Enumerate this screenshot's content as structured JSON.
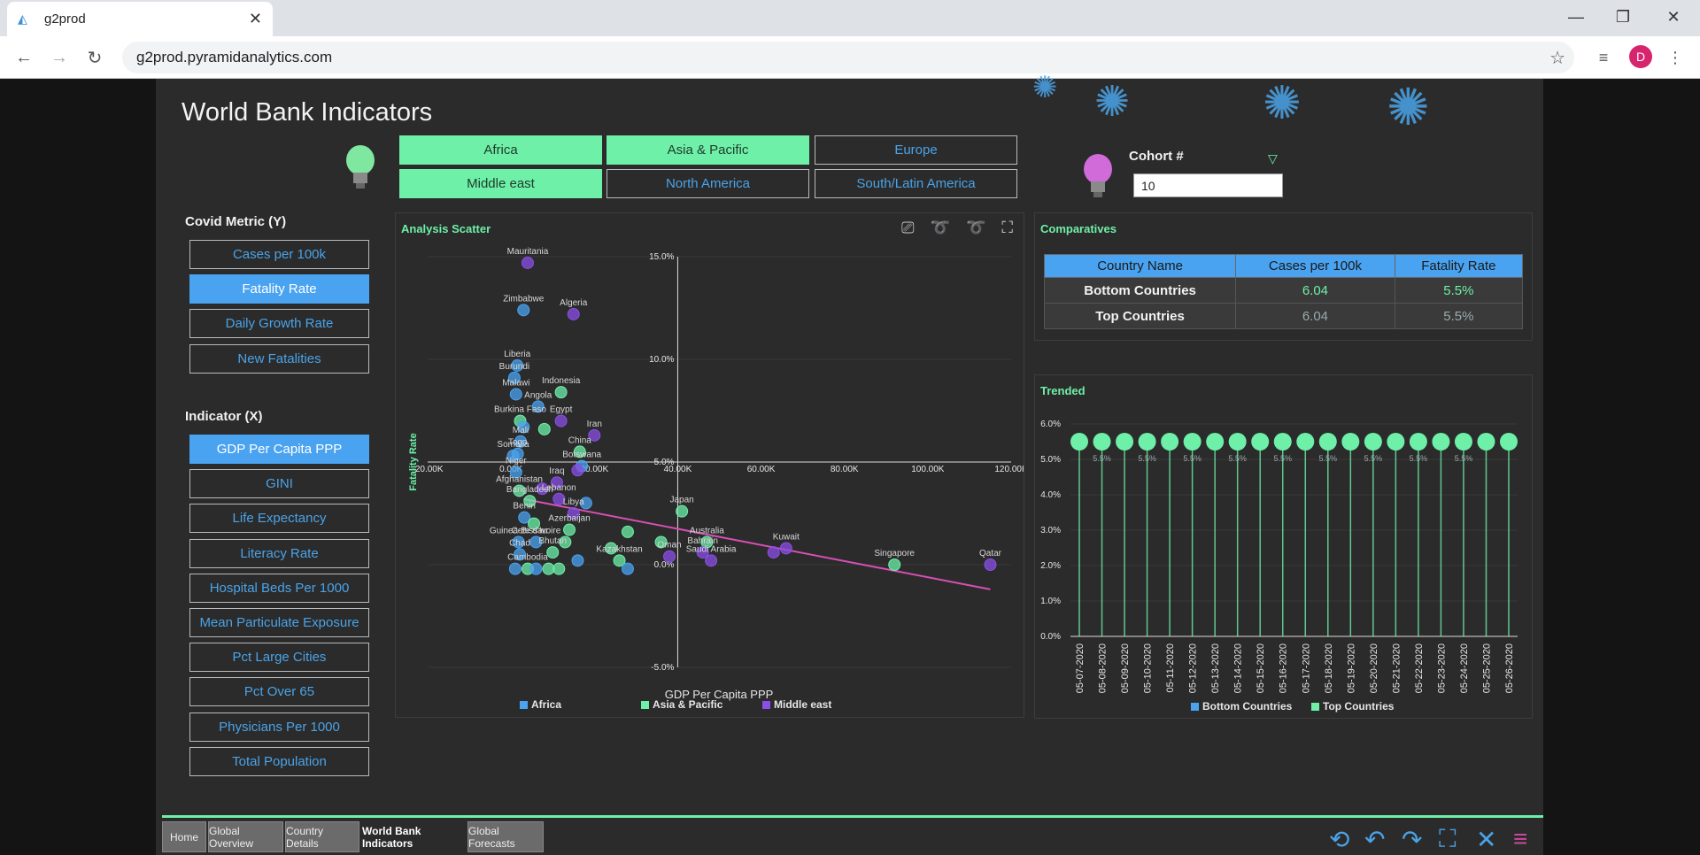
{
  "browser": {
    "tab_title": "g2prod",
    "url": "g2prod.pyramidanalytics.com",
    "avatar_letter": "D"
  },
  "dashboard": {
    "title": "World Bank Indicators",
    "regions": [
      {
        "label": "Africa",
        "active": true
      },
      {
        "label": "Asia & Pacific",
        "active": true
      },
      {
        "label": "Europe",
        "active": false
      },
      {
        "label": "Middle east",
        "active": true
      },
      {
        "label": "North America",
        "active": false
      },
      {
        "label": "South/Latin America",
        "active": false
      }
    ],
    "cohort": {
      "label": "Cohort #",
      "value": "10"
    },
    "covid_metric": {
      "label": "Covid Metric (Y)",
      "items": [
        "Cases per 100k",
        "Fatality Rate",
        "Daily Growth Rate",
        "New Fatalities"
      ],
      "active_index": 1
    },
    "indicator": {
      "label": "Indicator (X)",
      "items": [
        "GDP Per Capita PPP",
        "GINI",
        "Life Expectancy",
        "Literacy Rate",
        "Hospital Beds Per 1000",
        "Mean Particulate Exposure",
        "Pct Large Cities",
        "Pct Over 65",
        "Physicians Per 1000",
        "Total Population"
      ],
      "active_index": 0
    },
    "scatter": {
      "title": "Analysis Scatter",
      "xlabel": "GDP Per Capita PPP",
      "ylabel": "Fatality Rate",
      "legend": [
        {
          "name": "Africa",
          "color": "#4aa3f0"
        },
        {
          "name": "Asia & Pacific",
          "color": "#6ef0a8"
        },
        {
          "name": "Middle east",
          "color": "#8a4fe6"
        }
      ]
    },
    "comparatives": {
      "title": "Comparatives",
      "headers": [
        "Country Name",
        "Cases per 100k",
        "Fatality Rate"
      ],
      "rows": [
        {
          "name": "Bottom Countries",
          "cases": "6.04",
          "fatality": "5.5%"
        },
        {
          "name": "Top Countries",
          "cases": "6.04",
          "fatality": "5.5%"
        }
      ]
    },
    "trended": {
      "title": "Trended",
      "legend": [
        {
          "name": "Bottom Countries",
          "color": "#4aa3f0"
        },
        {
          "name": "Top Countries",
          "color": "#6ef0a8"
        }
      ]
    },
    "bottom_tabs": [
      {
        "label": "Home",
        "active": false
      },
      {
        "label": "Global Overview",
        "active": false
      },
      {
        "label": "Country Details",
        "active": false
      },
      {
        "label": "World Bank Indicators",
        "active": true
      },
      {
        "label": "Global Forecasts",
        "active": false
      }
    ]
  },
  "chart_data": [
    {
      "type": "scatter",
      "title": "Analysis Scatter",
      "xlabel": "GDP Per Capita PPP",
      "ylabel": "Fatality Rate",
      "xlim": [
        -20000,
        120000
      ],
      "ylim": [
        -5,
        15
      ],
      "x_ticks": [
        "-20.00K",
        "0.00K",
        "20.00K",
        "40.00K",
        "60.00K",
        "80.00K",
        "100.00K",
        "120.00K"
      ],
      "y_ticks": [
        "15.0%",
        "10.0%",
        "5.0%",
        "0.0%",
        "-5.0%"
      ],
      "points": [
        {
          "label": "Mauritania",
          "x": 4000,
          "y": 14.7,
          "region": "Middle east"
        },
        {
          "label": "Zimbabwe",
          "x": 3000,
          "y": 12.4,
          "region": "Africa"
        },
        {
          "label": "Algeria",
          "x": 15000,
          "y": 12.2,
          "region": "Middle east"
        },
        {
          "label": "Liberia",
          "x": 1500,
          "y": 9.7,
          "region": "Africa"
        },
        {
          "label": "Burundi",
          "x": 800,
          "y": 9.1,
          "region": "Africa"
        },
        {
          "label": "Indonesia",
          "x": 12000,
          "y": 8.4,
          "region": "Asia & Pacific"
        },
        {
          "label": "Malawi",
          "x": 1200,
          "y": 8.3,
          "region": "Africa"
        },
        {
          "label": "Angola",
          "x": 6500,
          "y": 7.7,
          "region": "Africa"
        },
        {
          "label": "Burkina Faso",
          "x": 2200,
          "y": 7.0,
          "region": "Asia & Pacific"
        },
        {
          "label": "Egypt",
          "x": 12000,
          "y": 7.0,
          "region": "Middle east"
        },
        {
          "label": "",
          "x": 8000,
          "y": 6.6,
          "region": "Asia & Pacific"
        },
        {
          "label": "",
          "x": 3000,
          "y": 6.7,
          "region": "Africa"
        },
        {
          "label": "Iran",
          "x": 20000,
          "y": 6.3,
          "region": "Middle east"
        },
        {
          "label": "Mali",
          "x": 2300,
          "y": 6.0,
          "region": "Africa"
        },
        {
          "label": "China",
          "x": 16500,
          "y": 5.5,
          "region": "Asia & Pacific"
        },
        {
          "label": "Togo",
          "x": 1600,
          "y": 5.4,
          "region": "Africa"
        },
        {
          "label": "Somalia",
          "x": 500,
          "y": 5.3,
          "region": "Africa"
        },
        {
          "label": "Botswana",
          "x": 17000,
          "y": 4.8,
          "region": "Africa"
        },
        {
          "label": "Niger",
          "x": 1200,
          "y": 4.5,
          "region": "Africa"
        },
        {
          "label": "",
          "x": 16000,
          "y": 4.6,
          "region": "Middle east"
        },
        {
          "label": "Iraq",
          "x": 11000,
          "y": 4.0,
          "region": "Middle east"
        },
        {
          "label": "Afghanistan",
          "x": 2000,
          "y": 3.6,
          "region": "Asia & Pacific"
        },
        {
          "label": "",
          "x": 7500,
          "y": 3.7,
          "region": "Middle east"
        },
        {
          "label": "Lebanon",
          "x": 11500,
          "y": 3.2,
          "region": "Middle east"
        },
        {
          "label": "Bangladesh",
          "x": 4500,
          "y": 3.1,
          "region": "Asia & Pacific"
        },
        {
          "label": "",
          "x": 18000,
          "y": 3.0,
          "region": "Africa"
        },
        {
          "label": "Japan",
          "x": 41000,
          "y": 2.6,
          "region": "Asia & Pacific"
        },
        {
          "label": "Libya",
          "x": 15000,
          "y": 2.5,
          "region": "Middle east"
        },
        {
          "label": "Benin",
          "x": 3200,
          "y": 2.3,
          "region": "Africa"
        },
        {
          "label": "",
          "x": 5500,
          "y": 2.0,
          "region": "Asia & Pacific"
        },
        {
          "label": "Azerbaijan",
          "x": 14000,
          "y": 1.7,
          "region": "Asia & Pacific"
        },
        {
          "label": "",
          "x": 28000,
          "y": 1.6,
          "region": "Asia & Pacific"
        },
        {
          "label": "Australia",
          "x": 47000,
          "y": 1.1,
          "region": "Asia & Pacific"
        },
        {
          "label": "Guinea-Bissau",
          "x": 1800,
          "y": 1.1,
          "region": "Africa"
        },
        {
          "label": "Cote d'Ivoire",
          "x": 6000,
          "y": 1.1,
          "region": "Africa"
        },
        {
          "label": "",
          "x": 13000,
          "y": 1.1,
          "region": "Asia & Pacific"
        },
        {
          "label": "",
          "x": 36000,
          "y": 1.1,
          "region": "Asia & Pacific"
        },
        {
          "label": "Kuwait",
          "x": 66000,
          "y": 0.8,
          "region": "Middle east"
        },
        {
          "label": "",
          "x": 63000,
          "y": 0.6,
          "region": "Middle east"
        },
        {
          "label": "Bahrain",
          "x": 46000,
          "y": 0.6,
          "region": "Middle east"
        },
        {
          "label": "",
          "x": 24000,
          "y": 0.8,
          "region": "Asia & Pacific"
        },
        {
          "label": "Chad",
          "x": 2100,
          "y": 0.5,
          "region": "Africa"
        },
        {
          "label": "Bhutan",
          "x": 10000,
          "y": 0.6,
          "region": "Asia & Pacific"
        },
        {
          "label": "Kazakhstan",
          "x": 26000,
          "y": 0.2,
          "region": "Asia & Pacific"
        },
        {
          "label": "",
          "x": 16000,
          "y": 0.2,
          "region": "Africa"
        },
        {
          "label": "Oman",
          "x": 38000,
          "y": 0.4,
          "region": "Middle east"
        },
        {
          "label": "Saudi Arabia",
          "x": 48000,
          "y": 0.2,
          "region": "Middle east"
        },
        {
          "label": "Singapore",
          "x": 92000,
          "y": 0.0,
          "region": "Asia & Pacific"
        },
        {
          "label": "Qatar",
          "x": 115000,
          "y": 0.0,
          "region": "Middle east"
        },
        {
          "label": "Cambodia",
          "x": 4000,
          "y": -0.2,
          "region": "Asia & Pacific"
        },
        {
          "label": "",
          "x": 1000,
          "y": -0.2,
          "region": "Africa"
        },
        {
          "label": "",
          "x": 6000,
          "y": -0.2,
          "region": "Africa"
        },
        {
          "label": "",
          "x": 9000,
          "y": -0.2,
          "region": "Asia & Pacific"
        },
        {
          "label": "",
          "x": 11500,
          "y": -0.2,
          "region": "Asia & Pacific"
        },
        {
          "label": "",
          "x": 28000,
          "y": -0.2,
          "region": "Africa"
        }
      ],
      "trendline": {
        "x": [
          3000,
          115000
        ],
        "y": [
          3.2,
          -1.2
        ]
      }
    },
    {
      "type": "line",
      "title": "Trended",
      "y_ticks": [
        "6.0%",
        "5.0%",
        "4.0%",
        "3.0%",
        "2.0%",
        "1.0%",
        "0.0%"
      ],
      "ylim": [
        0,
        6
      ],
      "categories": [
        "05-07-2020",
        "05-08-2020",
        "05-09-2020",
        "05-10-2020",
        "05-11-2020",
        "05-12-2020",
        "05-13-2020",
        "05-14-2020",
        "05-15-2020",
        "05-16-2020",
        "05-17-2020",
        "05-18-2020",
        "05-19-2020",
        "05-20-2020",
        "05-21-2020",
        "05-22-2020",
        "05-23-2020",
        "05-24-2020",
        "05-25-2020",
        "05-26-2020"
      ],
      "series": [
        {
          "name": "Top Countries",
          "values": [
            5.5,
            5.5,
            5.5,
            5.5,
            5.5,
            5.5,
            5.5,
            5.5,
            5.5,
            5.5,
            5.5,
            5.5,
            5.5,
            5.5,
            5.5,
            5.5,
            5.5,
            5.5,
            5.5,
            5.5
          ]
        }
      ],
      "data_labels": [
        "5.5%",
        "5.5%",
        "5.5%",
        "5.5%",
        "5.5%",
        "5.5%",
        "5.5%",
        "5.5%",
        "5.5%"
      ]
    }
  ]
}
